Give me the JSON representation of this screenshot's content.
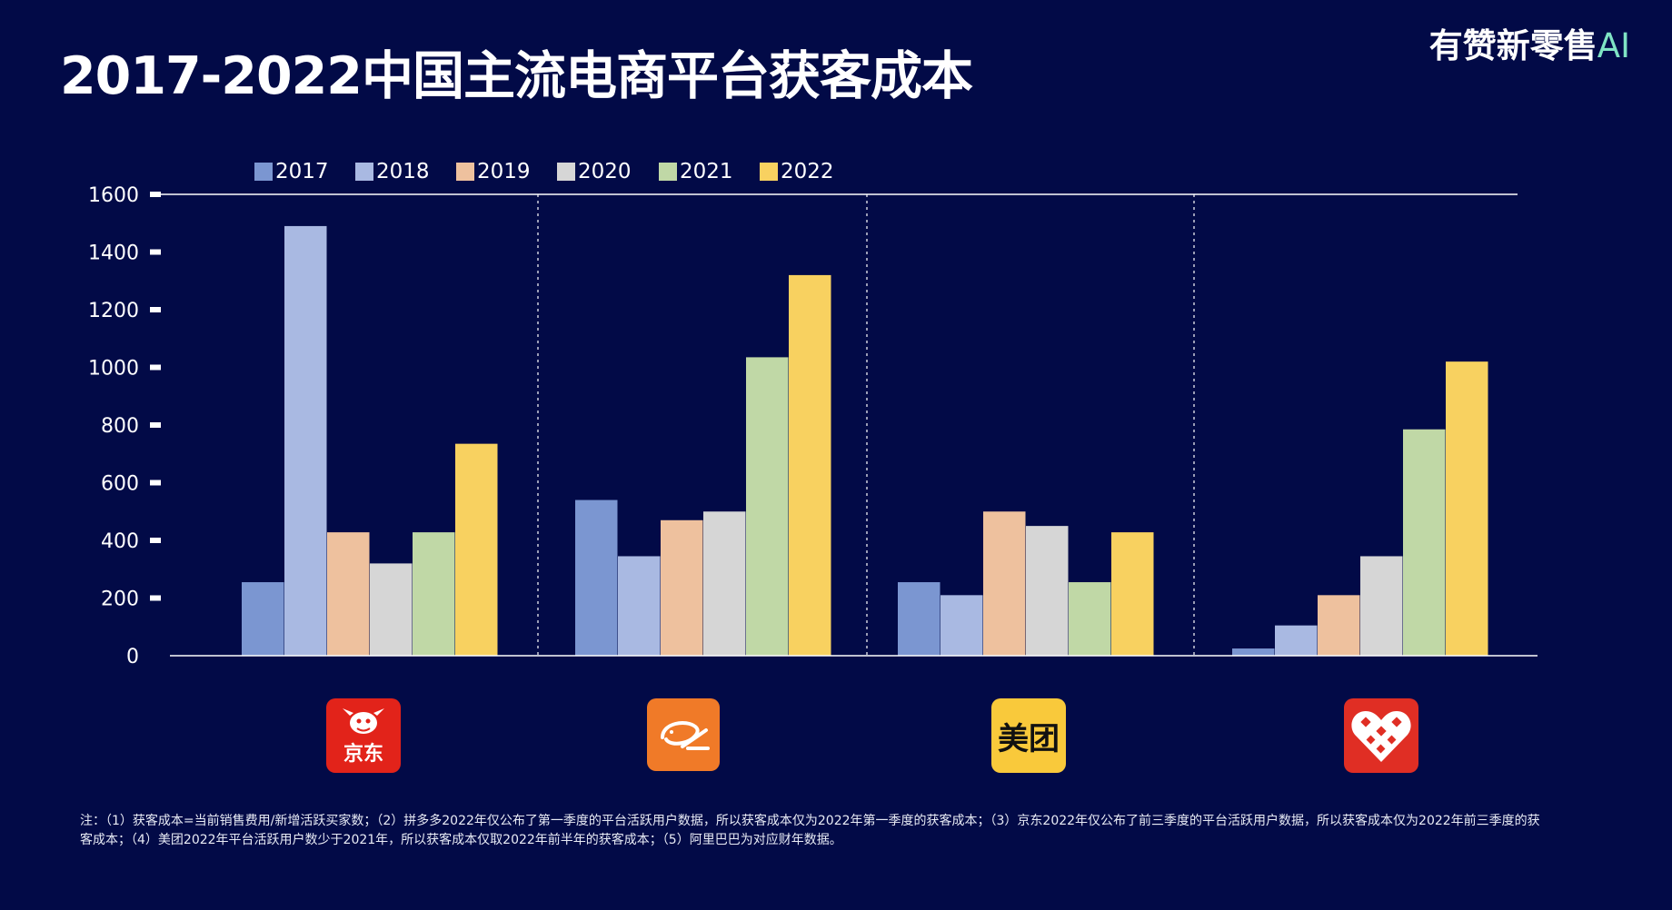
{
  "header": {
    "title": "2017-2022中国主流电商平台获客成本",
    "brand": "有赞新零售",
    "brand_ai": "AI"
  },
  "chart_data": {
    "type": "bar",
    "title": "2017-2022中国主流电商平台获客成本",
    "xlabel": "",
    "ylabel": "",
    "ylim": [
      0,
      1600
    ],
    "yticks": [
      0,
      200,
      400,
      600,
      800,
      1000,
      1200,
      1400,
      1600
    ],
    "grid": false,
    "legend_position": "top",
    "categories": [
      "京东",
      "阿里巴巴",
      "美团",
      "拼多多"
    ],
    "series": [
      {
        "name": "2017",
        "color": "#7b96d1",
        "values": [
          255,
          540,
          255,
          25
        ]
      },
      {
        "name": "2018",
        "color": "#a9b9e2",
        "values": [
          1490,
          345,
          210,
          105
        ]
      },
      {
        "name": "2019",
        "color": "#eec19e",
        "values": [
          428,
          470,
          500,
          210
        ]
      },
      {
        "name": "2020",
        "color": "#d6d6d6",
        "values": [
          320,
          500,
          450,
          345
        ]
      },
      {
        "name": "2021",
        "color": "#c0d8a6",
        "values": [
          428,
          1035,
          255,
          785
        ]
      },
      {
        "name": "2022",
        "color": "#f8d160",
        "values": [
          735,
          1320,
          428,
          1020
        ]
      }
    ]
  },
  "logos": [
    {
      "name": "jd-logo",
      "text": "京东",
      "icon": "jd-dog-icon"
    },
    {
      "name": "alibaba-logo",
      "text": "",
      "icon": "alibaba-icon"
    },
    {
      "name": "meituan-logo",
      "text": "美团",
      "icon": "meituan-icon"
    },
    {
      "name": "pinduoduo-logo",
      "text": "",
      "icon": "pinduoduo-heart-icon"
    }
  ],
  "footnote": "注：（1）获客成本=当前销售费用/新增活跃买家数；（2）拼多多2022年仅公布了第一季度的平台活跃用户数据，所以获客成本仅为2022年第一季度的获客成本；（3）京东2022年仅公布了前三季度的平台活跃用户数据，所以获客成本仅为2022年前三季度的获客成本；（4）美团2022年平台活跃用户数少于2021年，所以获客成本仅取2022年前半年的获客成本；（5）阿里巴巴为对应财年数据。"
}
